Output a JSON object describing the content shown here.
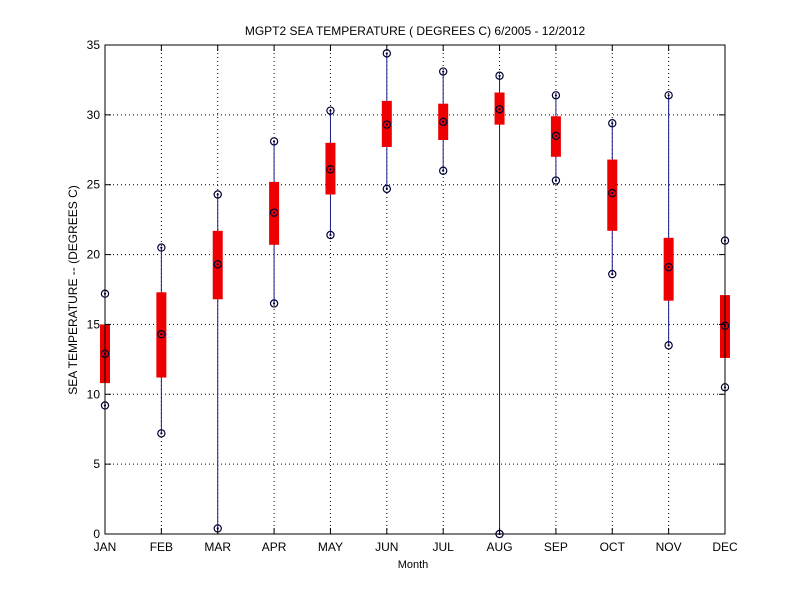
{
  "chart_data": {
    "type": "box",
    "title": "MGPT2  SEA TEMPERATURE ( DEGREES C) 6/2005 - 12/2012",
    "xlabel": "Month",
    "ylabel": "SEA TEMPERATURE -- (DEGREES C)",
    "categories": [
      "JAN",
      "FEB",
      "MAR",
      "APR",
      "MAY",
      "JUN",
      "JUL",
      "AUG",
      "SEP",
      "OCT",
      "NOV",
      "DEC"
    ],
    "ylim": [
      0,
      35
    ],
    "yticks": [
      0,
      5,
      10,
      15,
      20,
      25,
      30,
      35
    ],
    "grid": true,
    "colors": {
      "whisker": "#1c1c8c",
      "box": "#ee0000",
      "marker": "#000033",
      "grid": "#000000"
    },
    "series": [
      {
        "min": 9.2,
        "q1": 10.8,
        "median": 12.9,
        "q3": 15.0,
        "max": 17.2
      },
      {
        "min": 7.2,
        "q1": 11.2,
        "median": 14.3,
        "q3": 17.3,
        "max": 20.5
      },
      {
        "min": 0.4,
        "q1": 16.8,
        "median": 19.3,
        "q3": 21.7,
        "max": 24.3
      },
      {
        "min": 16.5,
        "q1": 20.7,
        "median": 23.0,
        "q3": 25.2,
        "max": 28.1
      },
      {
        "min": 21.4,
        "q1": 24.3,
        "median": 26.1,
        "q3": 28.0,
        "max": 30.3
      },
      {
        "min": 24.7,
        "q1": 27.7,
        "median": 29.3,
        "q3": 31.0,
        "max": 34.4
      },
      {
        "min": 26.0,
        "q1": 28.2,
        "median": 29.5,
        "q3": 30.8,
        "max": 33.1
      },
      {
        "min": 0.0,
        "q1": 29.3,
        "median": 30.4,
        "q3": 31.6,
        "max": 32.8
      },
      {
        "min": 25.3,
        "q1": 27.0,
        "median": 28.5,
        "q3": 29.9,
        "max": 31.4
      },
      {
        "min": 18.6,
        "q1": 21.7,
        "median": 24.4,
        "q3": 26.8,
        "max": 29.4
      },
      {
        "min": 13.5,
        "q1": 16.7,
        "median": 19.1,
        "q3": 21.2,
        "max": 31.4
      },
      {
        "min": 10.5,
        "q1": 12.6,
        "median": 14.9,
        "q3": 17.1,
        "max": 21.0
      }
    ]
  }
}
